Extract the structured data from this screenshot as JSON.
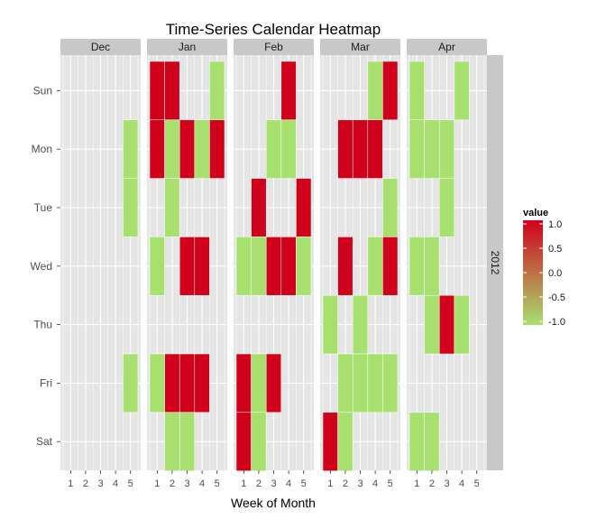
{
  "chart_data": {
    "type": "heatmap",
    "title": "Time-Series Calendar Heatmap",
    "xlabel": "Week of Month",
    "ylabel": "",
    "facet_row_label": "2012",
    "months": [
      "Dec",
      "Jan",
      "Feb",
      "Mar",
      "Apr"
    ],
    "weeks": [
      "1",
      "2",
      "3",
      "4",
      "5"
    ],
    "days": [
      "Sun",
      "Mon",
      "Tue",
      "Wed",
      "Thu",
      "Fri",
      "Sat"
    ],
    "legend": {
      "title": "value",
      "ticks": [
        "1.0",
        "0.5",
        "0.0",
        "-0.5",
        "-1.0"
      ],
      "tick_values": [
        1.0,
        0.5,
        0.0,
        -0.5,
        -1.0
      ],
      "low_color": "#a8e070",
      "high_color": "#d0021b",
      "range": [
        -1,
        1
      ]
    },
    "colors": {
      "panel_bg": "#e5e5e5",
      "grid": "#ffffff",
      "strip_bg": "#c8c8c8",
      "tick_text": "#4d4d4d"
    },
    "cells": [
      {
        "month": "Dec",
        "week": 5,
        "day": "Mon",
        "value": -1
      },
      {
        "month": "Dec",
        "week": 5,
        "day": "Tue",
        "value": -1
      },
      {
        "month": "Dec",
        "week": 5,
        "day": "Fri",
        "value": -1
      },
      {
        "month": "Jan",
        "week": 1,
        "day": "Sun",
        "value": 1
      },
      {
        "month": "Jan",
        "week": 2,
        "day": "Sun",
        "value": 1
      },
      {
        "month": "Jan",
        "week": 5,
        "day": "Sun",
        "value": -1
      },
      {
        "month": "Jan",
        "week": 1,
        "day": "Mon",
        "value": 1
      },
      {
        "month": "Jan",
        "week": 2,
        "day": "Mon",
        "value": -1
      },
      {
        "month": "Jan",
        "week": 3,
        "day": "Mon",
        "value": 1
      },
      {
        "month": "Jan",
        "week": 4,
        "day": "Mon",
        "value": -1
      },
      {
        "month": "Jan",
        "week": 5,
        "day": "Mon",
        "value": 1
      },
      {
        "month": "Jan",
        "week": 2,
        "day": "Tue",
        "value": -1
      },
      {
        "month": "Jan",
        "week": 1,
        "day": "Wed",
        "value": -1
      },
      {
        "month": "Jan",
        "week": 3,
        "day": "Wed",
        "value": 1
      },
      {
        "month": "Jan",
        "week": 4,
        "day": "Wed",
        "value": 1
      },
      {
        "month": "Jan",
        "week": 1,
        "day": "Fri",
        "value": -1
      },
      {
        "month": "Jan",
        "week": 2,
        "day": "Fri",
        "value": 1
      },
      {
        "month": "Jan",
        "week": 3,
        "day": "Fri",
        "value": 1
      },
      {
        "month": "Jan",
        "week": 4,
        "day": "Fri",
        "value": 1
      },
      {
        "month": "Jan",
        "week": 2,
        "day": "Sat",
        "value": -1
      },
      {
        "month": "Jan",
        "week": 3,
        "day": "Sat",
        "value": -1
      },
      {
        "month": "Feb",
        "week": 4,
        "day": "Sun",
        "value": 1
      },
      {
        "month": "Feb",
        "week": 3,
        "day": "Mon",
        "value": -1
      },
      {
        "month": "Feb",
        "week": 4,
        "day": "Mon",
        "value": -1
      },
      {
        "month": "Feb",
        "week": 2,
        "day": "Tue",
        "value": 1
      },
      {
        "month": "Feb",
        "week": 5,
        "day": "Tue",
        "value": 1
      },
      {
        "month": "Feb",
        "week": 1,
        "day": "Wed",
        "value": -1
      },
      {
        "month": "Feb",
        "week": 2,
        "day": "Wed",
        "value": -1
      },
      {
        "month": "Feb",
        "week": 3,
        "day": "Wed",
        "value": 1
      },
      {
        "month": "Feb",
        "week": 4,
        "day": "Wed",
        "value": 1
      },
      {
        "month": "Feb",
        "week": 5,
        "day": "Wed",
        "value": -1
      },
      {
        "month": "Feb",
        "week": 1,
        "day": "Fri",
        "value": 1
      },
      {
        "month": "Feb",
        "week": 2,
        "day": "Fri",
        "value": -1
      },
      {
        "month": "Feb",
        "week": 3,
        "day": "Fri",
        "value": 1
      },
      {
        "month": "Feb",
        "week": 1,
        "day": "Sat",
        "value": 1
      },
      {
        "month": "Feb",
        "week": 2,
        "day": "Sat",
        "value": -1
      },
      {
        "month": "Mar",
        "week": 4,
        "day": "Sun",
        "value": -1
      },
      {
        "month": "Mar",
        "week": 5,
        "day": "Sun",
        "value": 1
      },
      {
        "month": "Mar",
        "week": 2,
        "day": "Mon",
        "value": 1
      },
      {
        "month": "Mar",
        "week": 3,
        "day": "Mon",
        "value": 1
      },
      {
        "month": "Mar",
        "week": 4,
        "day": "Mon",
        "value": 1
      },
      {
        "month": "Mar",
        "week": 5,
        "day": "Tue",
        "value": -1
      },
      {
        "month": "Mar",
        "week": 2,
        "day": "Wed",
        "value": 1
      },
      {
        "month": "Mar",
        "week": 4,
        "day": "Wed",
        "value": -1
      },
      {
        "month": "Mar",
        "week": 5,
        "day": "Wed",
        "value": 1
      },
      {
        "month": "Mar",
        "week": 1,
        "day": "Thu",
        "value": -1
      },
      {
        "month": "Mar",
        "week": 3,
        "day": "Thu",
        "value": -1
      },
      {
        "month": "Mar",
        "week": 2,
        "day": "Fri",
        "value": -1
      },
      {
        "month": "Mar",
        "week": 3,
        "day": "Fri",
        "value": -1
      },
      {
        "month": "Mar",
        "week": 4,
        "day": "Fri",
        "value": -1
      },
      {
        "month": "Mar",
        "week": 5,
        "day": "Fri",
        "value": -1
      },
      {
        "month": "Mar",
        "week": 1,
        "day": "Sat",
        "value": 1
      },
      {
        "month": "Mar",
        "week": 2,
        "day": "Sat",
        "value": -1
      },
      {
        "month": "Apr",
        "week": 1,
        "day": "Sun",
        "value": -1
      },
      {
        "month": "Apr",
        "week": 4,
        "day": "Sun",
        "value": -1
      },
      {
        "month": "Apr",
        "week": 1,
        "day": "Mon",
        "value": -1
      },
      {
        "month": "Apr",
        "week": 2,
        "day": "Mon",
        "value": -1
      },
      {
        "month": "Apr",
        "week": 3,
        "day": "Mon",
        "value": -1
      },
      {
        "month": "Apr",
        "week": 3,
        "day": "Tue",
        "value": -1
      },
      {
        "month": "Apr",
        "week": 1,
        "day": "Wed",
        "value": -1
      },
      {
        "month": "Apr",
        "week": 2,
        "day": "Wed",
        "value": -1
      },
      {
        "month": "Apr",
        "week": 2,
        "day": "Thu",
        "value": -1
      },
      {
        "month": "Apr",
        "week": 3,
        "day": "Thu",
        "value": 1
      },
      {
        "month": "Apr",
        "week": 4,
        "day": "Thu",
        "value": -1
      },
      {
        "month": "Apr",
        "week": 1,
        "day": "Sat",
        "value": -1
      },
      {
        "month": "Apr",
        "week": 2,
        "day": "Sat",
        "value": -1
      }
    ]
  }
}
